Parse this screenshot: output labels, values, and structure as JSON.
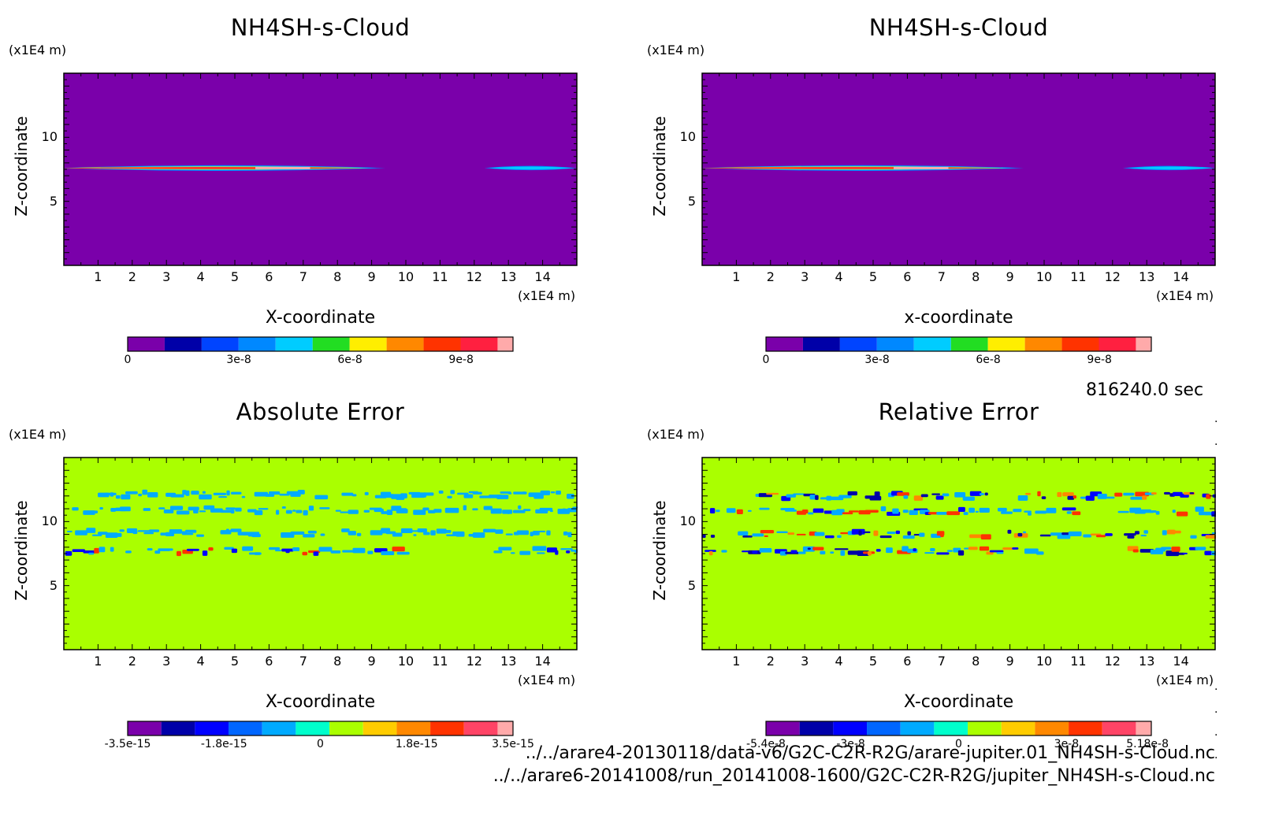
{
  "time_text": "816240.0 sec",
  "file_paths": [
    "../../arare4-20130118/data-v6/G2C-C2R-R2G/arare-jupiter.01_NH4SH-s-Cloud.nc",
    "../../arare6-20141008/run_20141008-1600/G2C-C2R-R2G/jupiter_NH4SH-s-Cloud.nc"
  ],
  "chart_data": [
    {
      "type": "heatmap",
      "title": "NH4SH-s-Cloud",
      "xlabel": "X-coordinate",
      "ylabel": "Z-coordinate",
      "x_unit": "(x1E4 m)",
      "y_unit": "(x1E4 m)",
      "xlim": [
        0,
        15
      ],
      "ylim": [
        0,
        15
      ],
      "x_ticks": [
        "1",
        "2",
        "3",
        "4",
        "5",
        "6",
        "7",
        "8",
        "9",
        "10",
        "11",
        "12",
        "13",
        "14"
      ],
      "y_ticks": [
        "5",
        "10"
      ],
      "background_color": "#7a00aa",
      "colorbar": {
        "colors": [
          "#7a00aa",
          "#0000a8",
          "#0044ff",
          "#0088ff",
          "#00ccff",
          "#22dd22",
          "#ffee00",
          "#ff8800",
          "#ff3300",
          "#ff2040",
          "#ffaaaa"
        ],
        "labels": [
          "0",
          "3e-8",
          "6e-8",
          "9e-8"
        ],
        "label_positions": [
          0,
          0.2885,
          0.5769,
          0.8654
        ]
      },
      "features": [
        {
          "kind": "cloud_band",
          "x_range": [
            0,
            9.4
          ],
          "z_center": 7.6,
          "peak": 9.9e-08
        },
        {
          "kind": "cloud_band",
          "x_range": [
            12.3,
            15
          ],
          "z_center": 7.6,
          "peak": 3e-08
        }
      ]
    },
    {
      "type": "heatmap",
      "title": "NH4SH-s-Cloud",
      "xlabel": "x-coordinate",
      "ylabel": "Z-coordinate",
      "x_unit": "(x1E4 m)",
      "y_unit": "(x1E4 m)",
      "xlim": [
        0,
        15
      ],
      "ylim": [
        0,
        15
      ],
      "x_ticks": [
        "1",
        "2",
        "3",
        "4",
        "5",
        "6",
        "7",
        "8",
        "9",
        "10",
        "11",
        "12",
        "13",
        "14"
      ],
      "y_ticks": [
        "5",
        "10"
      ],
      "background_color": "#7a00aa",
      "colorbar": {
        "colors": [
          "#7a00aa",
          "#0000a8",
          "#0044ff",
          "#0088ff",
          "#00ccff",
          "#22dd22",
          "#ffee00",
          "#ff8800",
          "#ff3300",
          "#ff2040",
          "#ffaaaa"
        ],
        "labels": [
          "0",
          "3e-8",
          "6e-8",
          "9e-8"
        ],
        "label_positions": [
          0,
          0.2885,
          0.5769,
          0.8654
        ]
      },
      "features": [
        {
          "kind": "cloud_band",
          "x_range": [
            0,
            9.4
          ],
          "z_center": 7.6,
          "peak": 9.9e-08
        },
        {
          "kind": "cloud_band",
          "x_range": [
            12.3,
            15
          ],
          "z_center": 7.6,
          "peak": 3e-08
        }
      ]
    },
    {
      "type": "heatmap",
      "title": "Absolute Error",
      "xlabel": "X-coordinate",
      "ylabel": "Z-coordinate",
      "x_unit": "(x1E4 m)",
      "y_unit": "(x1E4 m)",
      "xlim": [
        0,
        15
      ],
      "ylim": [
        0,
        15
      ],
      "x_ticks": [
        "1",
        "2",
        "3",
        "4",
        "5",
        "6",
        "7",
        "8",
        "9",
        "10",
        "11",
        "12",
        "13",
        "14"
      ],
      "y_ticks": [
        "5",
        "10"
      ],
      "background_color": "#aaff00",
      "colorbar": {
        "colors": [
          "#7a00aa",
          "#0000a8",
          "#0000ff",
          "#0066ff",
          "#00aaff",
          "#00ffcc",
          "#aaff00",
          "#ffcc00",
          "#ff8800",
          "#ff3300",
          "#ff4466",
          "#ffaaaa"
        ],
        "labels": [
          "-3.5e-15",
          "-1.8e-15",
          "0",
          "1.8e-15",
          "3.5e-15"
        ],
        "label_positions": [
          0,
          0.25,
          0.5,
          0.75,
          1.0
        ]
      },
      "features": [
        {
          "kind": "error_band",
          "z_center": 12.1,
          "x_range": [
            0.8,
            15
          ],
          "level": "low"
        },
        {
          "kind": "error_band",
          "z_center": 10.9,
          "x_range": [
            0,
            15
          ],
          "level": "low"
        },
        {
          "kind": "error_band",
          "z_center": 9.1,
          "x_range": [
            0,
            15
          ],
          "level": "low"
        },
        {
          "kind": "error_band",
          "z_center": 7.7,
          "x_range": [
            0,
            9.8
          ],
          "level": "mixed"
        },
        {
          "kind": "error_band",
          "z_center": 7.7,
          "x_range": [
            12.5,
            15
          ],
          "level": "mixed"
        }
      ]
    },
    {
      "type": "heatmap",
      "title": "Relative Error",
      "xlabel": "X-coordinate",
      "ylabel": "Z-coordinate",
      "x_unit": "(x1E4 m)",
      "y_unit": "(x1E4 m)",
      "xlim": [
        0,
        15
      ],
      "ylim": [
        0,
        15
      ],
      "x_ticks": [
        "1",
        "2",
        "3",
        "4",
        "5",
        "6",
        "7",
        "8",
        "9",
        "10",
        "11",
        "12",
        "13",
        "14"
      ],
      "y_ticks": [
        "5",
        "10"
      ],
      "background_color": "#aaff00",
      "colorbar": {
        "colors": [
          "#7a00aa",
          "#0000a8",
          "#0000ff",
          "#0066ff",
          "#00aaff",
          "#00ffcc",
          "#aaff00",
          "#ffcc00",
          "#ff8800",
          "#ff3300",
          "#ff4466",
          "#ffaaaa"
        ],
        "labels": [
          "-5.4e-8",
          "-3e-8",
          "0",
          "3e-8",
          "5.18e-8"
        ],
        "label_positions": [
          0,
          0.22,
          0.5,
          0.78,
          0.99
        ]
      },
      "features": [
        {
          "kind": "error_band",
          "z_center": 12.0,
          "x_range": [
            1.0,
            15
          ],
          "level": "high"
        },
        {
          "kind": "error_band",
          "z_center": 10.8,
          "x_range": [
            0,
            15
          ],
          "level": "mixed"
        },
        {
          "kind": "error_band",
          "z_center": 9.0,
          "x_range": [
            0,
            15
          ],
          "level": "high"
        },
        {
          "kind": "error_band",
          "z_center": 7.7,
          "x_range": [
            0,
            9.8
          ],
          "level": "high"
        },
        {
          "kind": "error_band",
          "z_center": 7.7,
          "x_range": [
            12.4,
            15
          ],
          "level": "high"
        }
      ]
    }
  ]
}
